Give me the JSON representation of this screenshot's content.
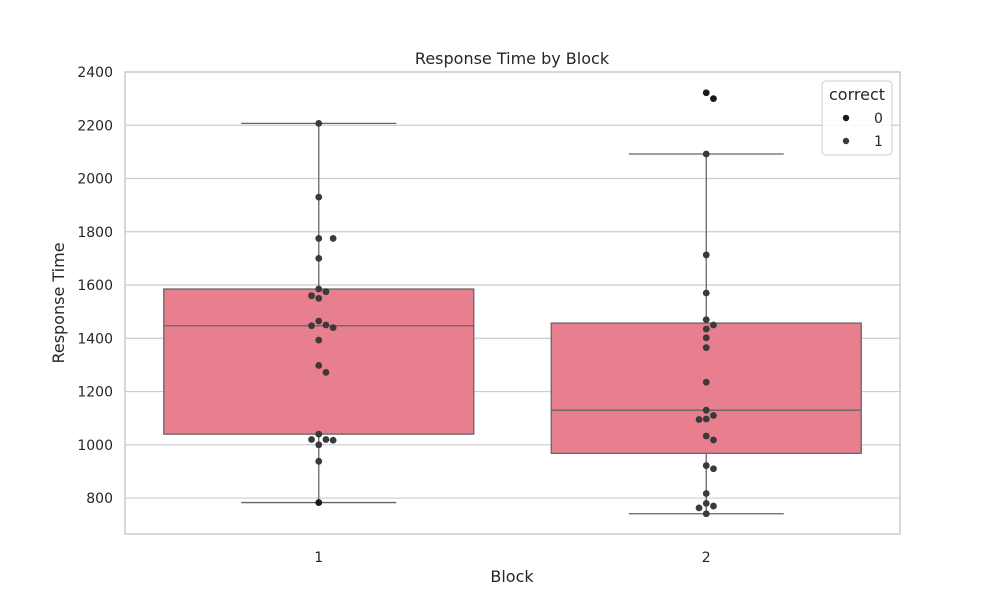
{
  "chart_data": {
    "type": "box",
    "title": "Response Time by Block",
    "xlabel": "Block",
    "ylabel": "Response Time",
    "categories": [
      "1",
      "2"
    ],
    "ylim": [
      665,
      2400
    ],
    "yticks": [
      800,
      1000,
      1200,
      1400,
      1600,
      1800,
      2000,
      2200,
      2400
    ],
    "grid": true,
    "legend": {
      "title": "correct",
      "entries": [
        "0",
        "1"
      ],
      "placement": "top-right"
    },
    "colors": {
      "box": "#e87f8f",
      "box_edge": "#666666",
      "point_0": "#1a1a1a",
      "point_1": "#3a3a3a",
      "grid": "#cccccc",
      "frame": "#cccccc"
    },
    "boxes": [
      {
        "category": "1",
        "whisker_low": 783,
        "q1": 1040,
        "median": 1447,
        "q3": 1585,
        "whisker_high": 2207
      },
      {
        "category": "2",
        "whisker_low": 741,
        "q1": 968,
        "median": 1130,
        "q3": 1457,
        "whisker_high": 2092
      }
    ],
    "points": [
      {
        "category": "1",
        "correct": "0",
        "values": [
          783
        ]
      },
      {
        "category": "1",
        "correct": "1",
        "values": [
          2207,
          1930,
          1775,
          1775,
          1700,
          1585,
          1575,
          1560,
          1550,
          1465,
          1450,
          1447,
          1440,
          1393,
          1298,
          1272,
          1040,
          1020,
          1020,
          1017,
          1000,
          938
        ]
      },
      {
        "category": "2",
        "correct": "0",
        "values": [
          2322,
          2300
        ]
      },
      {
        "category": "2",
        "correct": "1",
        "values": [
          2092,
          1713,
          1570,
          1470,
          1450,
          1435,
          1402,
          1365,
          1235,
          1130,
          1110,
          1097,
          1095,
          1033,
          1018,
          922,
          910,
          817,
          780,
          770,
          763,
          741
        ]
      }
    ]
  }
}
